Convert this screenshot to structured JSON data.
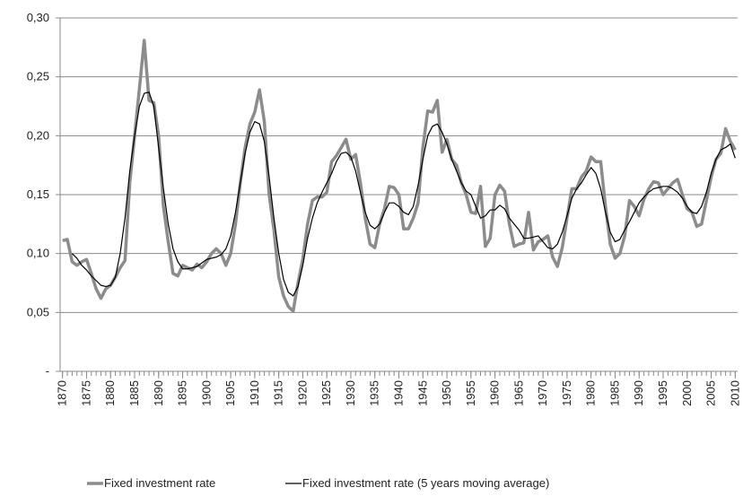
{
  "chart_data": {
    "type": "line",
    "x": [
      1870,
      1871,
      1872,
      1873,
      1874,
      1875,
      1876,
      1877,
      1878,
      1879,
      1880,
      1881,
      1882,
      1883,
      1884,
      1885,
      1886,
      1887,
      1888,
      1889,
      1890,
      1891,
      1892,
      1893,
      1894,
      1895,
      1896,
      1897,
      1898,
      1899,
      1900,
      1901,
      1902,
      1903,
      1904,
      1905,
      1906,
      1907,
      1908,
      1909,
      1910,
      1911,
      1912,
      1913,
      1914,
      1915,
      1916,
      1917,
      1918,
      1919,
      1920,
      1921,
      1922,
      1923,
      1924,
      1925,
      1926,
      1927,
      1928,
      1929,
      1930,
      1931,
      1932,
      1933,
      1934,
      1935,
      1936,
      1937,
      1938,
      1939,
      1940,
      1941,
      1942,
      1943,
      1944,
      1945,
      1946,
      1947,
      1948,
      1949,
      1950,
      1951,
      1952,
      1953,
      1954,
      1955,
      1956,
      1957,
      1958,
      1959,
      1960,
      1961,
      1962,
      1963,
      1964,
      1965,
      1966,
      1967,
      1968,
      1969,
      1970,
      1971,
      1972,
      1973,
      1974,
      1975,
      1976,
      1977,
      1978,
      1979,
      1980,
      1981,
      1982,
      1983,
      1984,
      1985,
      1986,
      1987,
      1988,
      1989,
      1990,
      1991,
      1992,
      1993,
      1994,
      1995,
      1996,
      1997,
      1998,
      1999,
      2000,
      2001,
      2002,
      2003,
      2004,
      2005,
      2006,
      2007,
      2008,
      2009,
      2010
    ],
    "series": [
      {
        "name": "Fixed investment rate",
        "color": "#8c8c8c",
        "width": 3.5,
        "values": [
          0.111,
          0.112,
          0.093,
          0.09,
          0.093,
          0.095,
          0.083,
          0.07,
          0.062,
          0.07,
          0.073,
          0.08,
          0.088,
          0.094,
          0.16,
          0.2,
          0.24,
          0.281,
          0.23,
          0.228,
          0.2,
          0.14,
          0.11,
          0.083,
          0.081,
          0.09,
          0.088,
          0.086,
          0.091,
          0.088,
          0.093,
          0.1,
          0.104,
          0.1,
          0.09,
          0.1,
          0.125,
          0.16,
          0.19,
          0.21,
          0.22,
          0.239,
          0.212,
          0.15,
          0.12,
          0.08,
          0.064,
          0.055,
          0.051,
          0.075,
          0.095,
          0.125,
          0.145,
          0.148,
          0.148,
          0.152,
          0.178,
          0.183,
          0.19,
          0.197,
          0.18,
          0.184,
          0.16,
          0.13,
          0.108,
          0.105,
          0.125,
          0.138,
          0.157,
          0.156,
          0.15,
          0.121,
          0.121,
          0.13,
          0.143,
          0.19,
          0.221,
          0.22,
          0.23,
          0.186,
          0.197,
          0.18,
          0.175,
          0.16,
          0.15,
          0.135,
          0.134,
          0.157,
          0.106,
          0.113,
          0.15,
          0.158,
          0.153,
          0.125,
          0.106,
          0.108,
          0.109,
          0.135,
          0.103,
          0.11,
          0.112,
          0.115,
          0.097,
          0.089,
          0.105,
          0.13,
          0.155,
          0.155,
          0.165,
          0.17,
          0.182,
          0.178,
          0.178,
          0.14,
          0.108,
          0.096,
          0.1,
          0.115,
          0.145,
          0.14,
          0.132,
          0.146,
          0.155,
          0.161,
          0.16,
          0.15,
          0.155,
          0.16,
          0.163,
          0.15,
          0.138,
          0.135,
          0.123,
          0.125,
          0.145,
          0.165,
          0.18,
          0.185,
          0.206,
          0.195,
          0.188
        ]
      },
      {
        "name": "Fixed investment rate (5 years moving average)",
        "color": "#000000",
        "width": 1.2,
        "values": [
          null,
          null,
          0.1,
          0.096,
          0.09,
          0.086,
          0.081,
          0.077,
          0.073,
          0.072,
          0.073,
          0.08,
          0.1,
          0.13,
          0.17,
          0.2,
          0.225,
          0.236,
          0.237,
          0.225,
          0.19,
          0.155,
          0.125,
          0.104,
          0.093,
          0.087,
          0.087,
          0.088,
          0.089,
          0.092,
          0.095,
          0.096,
          0.097,
          0.099,
          0.104,
          0.115,
          0.135,
          0.16,
          0.185,
          0.203,
          0.212,
          0.21,
          0.195,
          0.165,
          0.13,
          0.1,
          0.078,
          0.067,
          0.064,
          0.072,
          0.09,
          0.113,
          0.13,
          0.143,
          0.152,
          0.16,
          0.168,
          0.178,
          0.185,
          0.186,
          0.182,
          0.17,
          0.152,
          0.135,
          0.124,
          0.121,
          0.125,
          0.135,
          0.143,
          0.143,
          0.14,
          0.135,
          0.133,
          0.14,
          0.158,
          0.18,
          0.2,
          0.208,
          0.21,
          0.203,
          0.193,
          0.18,
          0.17,
          0.16,
          0.153,
          0.15,
          0.14,
          0.13,
          0.132,
          0.137,
          0.137,
          0.141,
          0.138,
          0.13,
          0.125,
          0.12,
          0.113,
          0.113,
          0.114,
          0.115,
          0.11,
          0.105,
          0.104,
          0.108,
          0.118,
          0.132,
          0.147,
          0.155,
          0.16,
          0.167,
          0.173,
          0.168,
          0.155,
          0.135,
          0.118,
          0.11,
          0.112,
          0.12,
          0.127,
          0.135,
          0.143,
          0.148,
          0.152,
          0.155,
          0.156,
          0.157,
          0.157,
          0.155,
          0.152,
          0.147,
          0.14,
          0.135,
          0.134,
          0.14,
          0.152,
          0.168,
          0.18,
          0.188,
          0.19,
          0.193,
          0.181
        ]
      }
    ],
    "xlim": [
      1869.5,
      2010.5
    ],
    "xticks": [
      1870,
      1875,
      1880,
      1885,
      1890,
      1895,
      1900,
      1905,
      1910,
      1915,
      1920,
      1925,
      1930,
      1935,
      1940,
      1945,
      1950,
      1955,
      1960,
      1965,
      1970,
      1975,
      1980,
      1985,
      1990,
      1995,
      2000,
      2005,
      2010
    ],
    "ylim": [
      0,
      0.3
    ],
    "yticks": [
      {
        "value": 0,
        "label": "-"
      },
      {
        "value": 0.05,
        "label": "0,05"
      },
      {
        "value": 0.1,
        "label": "0,10"
      },
      {
        "value": 0.15,
        "label": "0,15"
      },
      {
        "value": 0.2,
        "label": "0,20"
      },
      {
        "value": 0.25,
        "label": "0,25"
      },
      {
        "value": 0.3,
        "label": "0,30"
      }
    ],
    "grid": true,
    "legend": "bottom"
  }
}
